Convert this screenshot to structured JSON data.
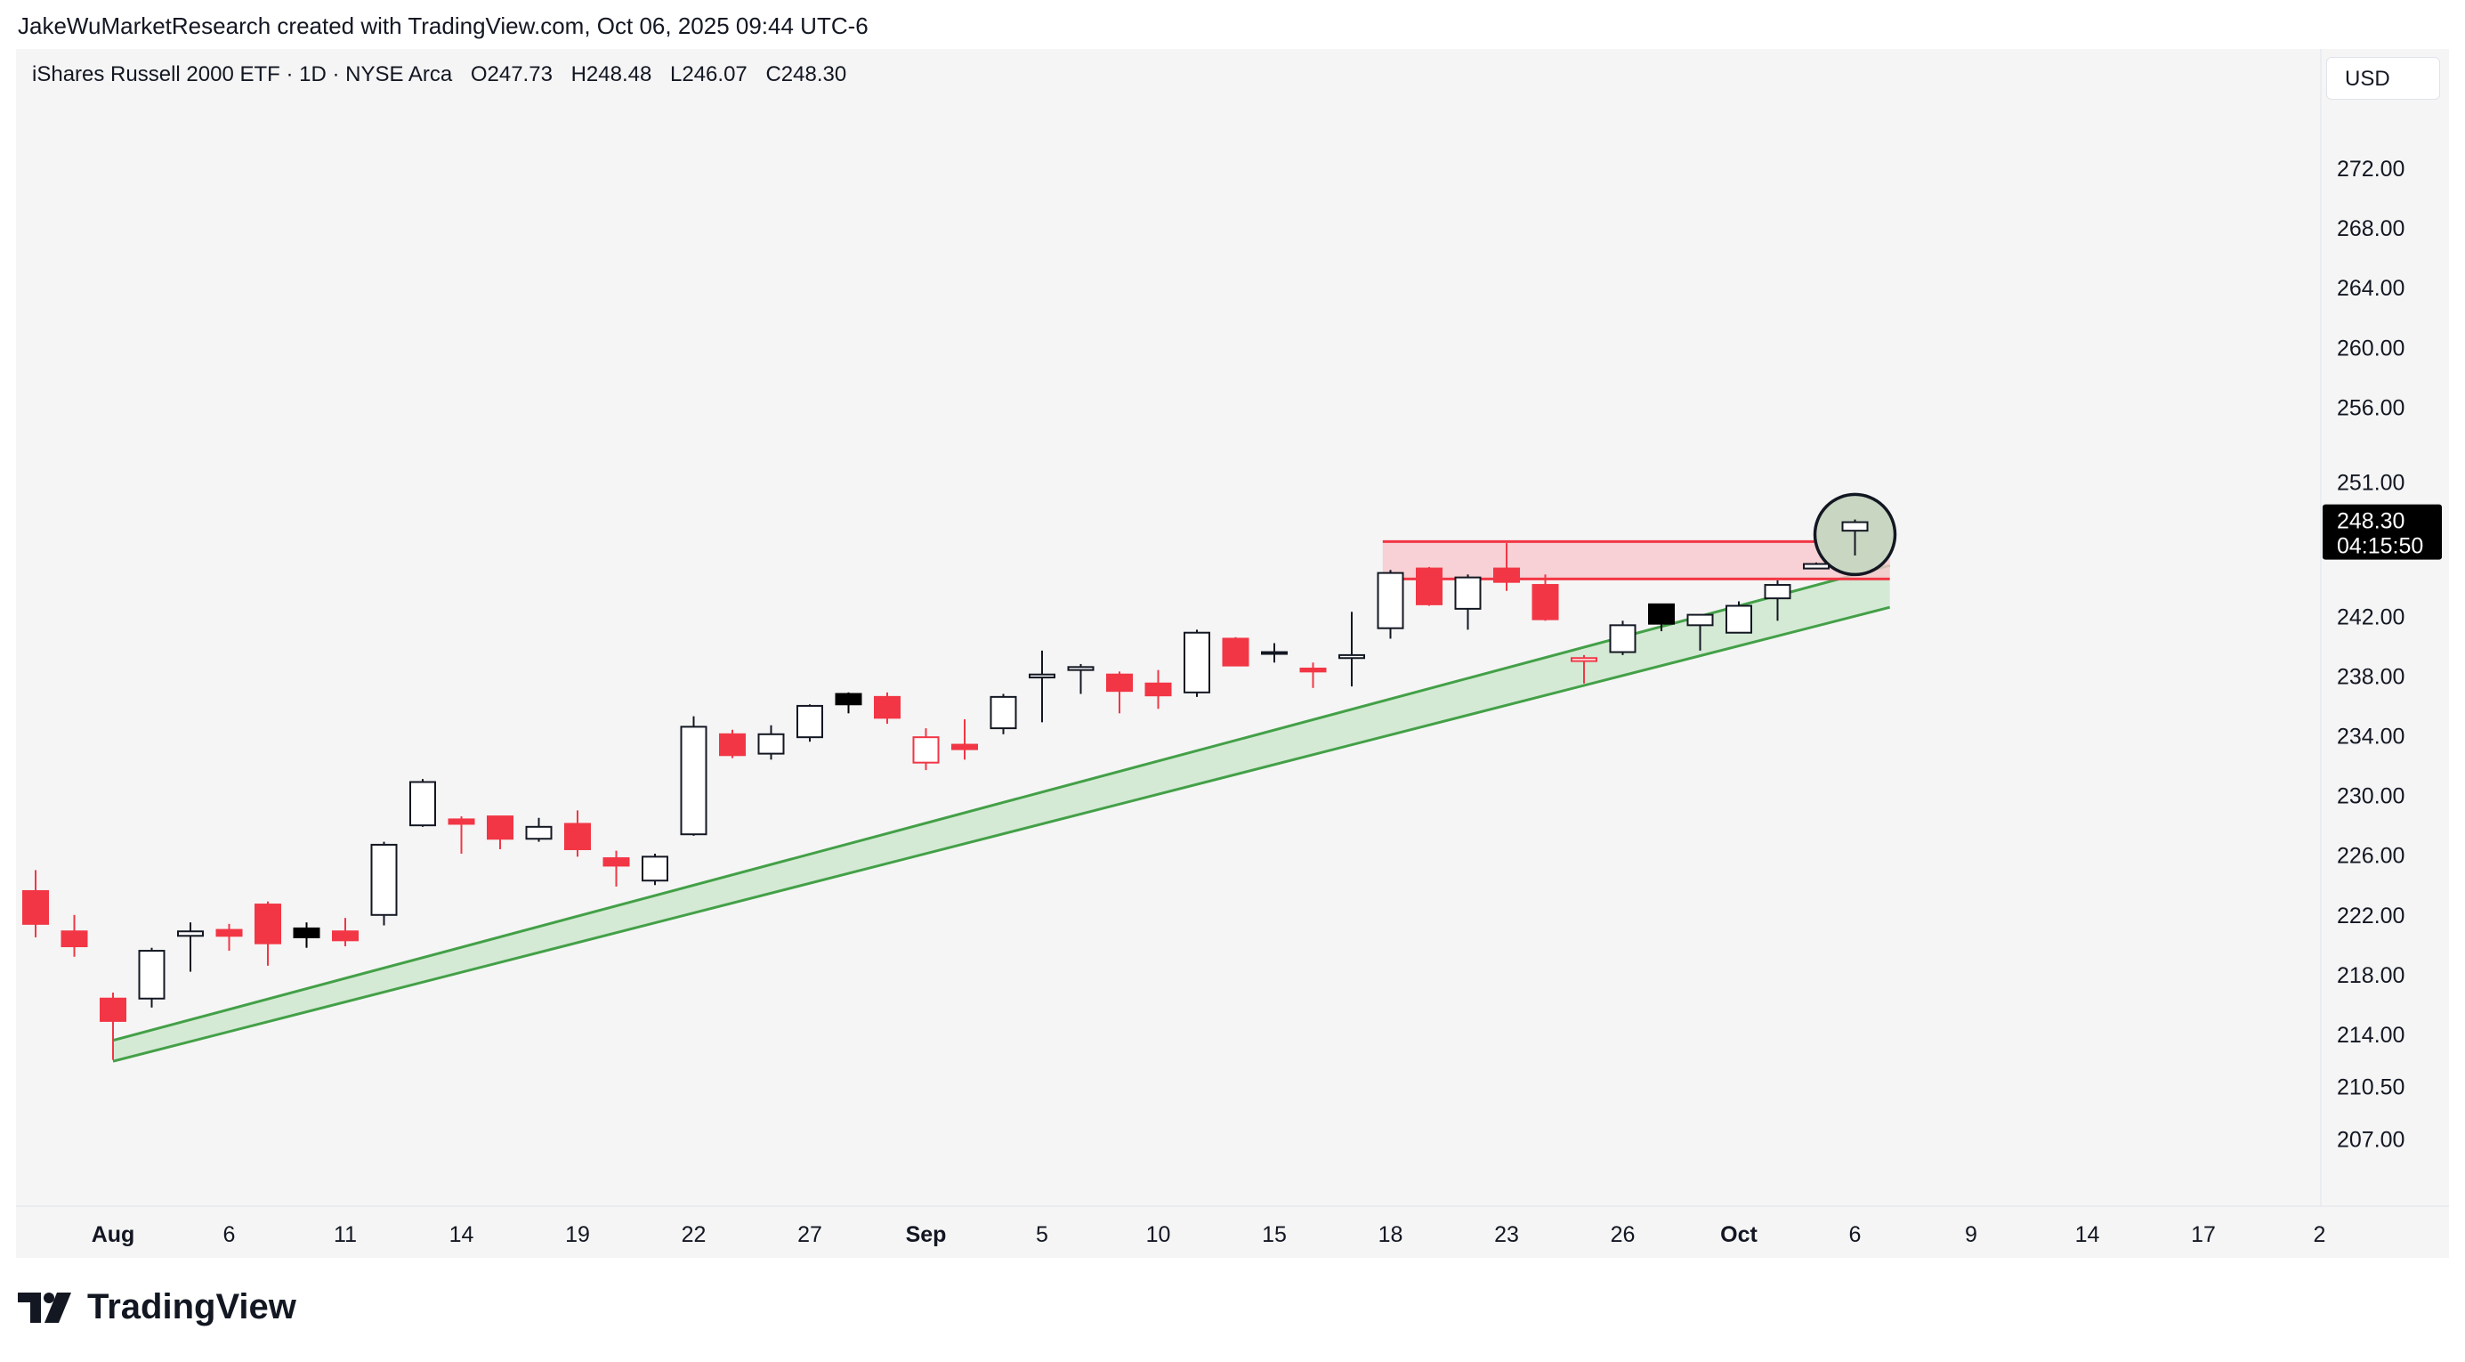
{
  "header": {
    "attribution": "JakeWuMarketResearch created with TradingView.com, Oct 06, 2025 09:44 UTC-6"
  },
  "symbol": {
    "name": "iShares Russell 2000 ETF · 1D · NYSE Arca",
    "open": "O247.73",
    "high": "H248.48",
    "low": "L246.07",
    "close": "C248.30"
  },
  "currency_button": "USD",
  "price_label": {
    "price": "248.30",
    "countdown": "04:15:50"
  },
  "brand": "TradingView",
  "colors": {
    "up_body": "#ffffff",
    "up_border": "#131722",
    "down": "#f23645",
    "doji_dark": "#000000",
    "channel": "#43a047",
    "channel_fill": "#c8e6c9",
    "resistance": "#f23645",
    "resistance_fill": "#f8c8cd",
    "circle_fill": "#c9d6c2",
    "background": "#f5f5f5"
  },
  "chart_data": {
    "type": "candlestick",
    "title": "iShares Russell 2000 ETF · 1D · NYSE Arca",
    "interval": "1D",
    "y_axis": {
      "ticks": [
        "272.00",
        "268.00",
        "264.00",
        "260.00",
        "256.00",
        "251.00",
        "242.00",
        "238.00",
        "234.00",
        "230.00",
        "226.00",
        "222.00",
        "218.00",
        "214.00",
        "210.50",
        "207.00"
      ]
    },
    "x_axis": {
      "ticks": [
        {
          "label": "Aug",
          "bold": true,
          "i": 2
        },
        {
          "label": "6",
          "bold": false,
          "i": 5
        },
        {
          "label": "11",
          "bold": false,
          "i": 8
        },
        {
          "label": "14",
          "bold": false,
          "i": 11
        },
        {
          "label": "19",
          "bold": false,
          "i": 14
        },
        {
          "label": "22",
          "bold": false,
          "i": 17
        },
        {
          "label": "27",
          "bold": false,
          "i": 20
        },
        {
          "label": "Sep",
          "bold": true,
          "i": 23
        },
        {
          "label": "5",
          "bold": false,
          "i": 26
        },
        {
          "label": "10",
          "bold": false,
          "i": 29
        },
        {
          "label": "15",
          "bold": false,
          "i": 32
        },
        {
          "label": "18",
          "bold": false,
          "i": 35
        },
        {
          "label": "23",
          "bold": false,
          "i": 38
        },
        {
          "label": "26",
          "bold": false,
          "i": 41
        },
        {
          "label": "Oct",
          "bold": true,
          "i": 44
        },
        {
          "label": "6",
          "bold": false,
          "i": 47
        },
        {
          "label": "9",
          "bold": false,
          "i": 50
        },
        {
          "label": "14",
          "bold": false,
          "i": 53
        },
        {
          "label": "17",
          "bold": false,
          "i": 56
        },
        {
          "label": "2",
          "bold": false,
          "i": 59
        }
      ]
    },
    "candles": [
      {
        "o": 223.6,
        "h": 225.0,
        "l": 220.5,
        "c": 221.4,
        "dir": "down"
      },
      {
        "o": 220.9,
        "h": 222.0,
        "l": 219.2,
        "c": 219.9,
        "dir": "down"
      },
      {
        "o": 216.4,
        "h": 216.8,
        "l": 212.3,
        "c": 214.9,
        "dir": "down"
      },
      {
        "o": 216.4,
        "h": 219.8,
        "l": 215.8,
        "c": 219.6,
        "dir": "up"
      },
      {
        "o": 220.6,
        "h": 221.5,
        "l": 218.2,
        "c": 220.9,
        "dir": "up"
      },
      {
        "o": 221.0,
        "h": 221.4,
        "l": 219.6,
        "c": 220.6,
        "dir": "down"
      },
      {
        "o": 222.7,
        "h": 222.9,
        "l": 218.6,
        "c": 220.1,
        "dir": "down"
      },
      {
        "o": 221.1,
        "h": 221.5,
        "l": 219.8,
        "c": 220.5,
        "dir": "dark"
      },
      {
        "o": 220.9,
        "h": 221.8,
        "l": 219.9,
        "c": 220.3,
        "dir": "down"
      },
      {
        "o": 222.0,
        "h": 226.9,
        "l": 221.3,
        "c": 226.7,
        "dir": "up"
      },
      {
        "o": 228.0,
        "h": 231.1,
        "l": 227.9,
        "c": 230.9,
        "dir": "up"
      },
      {
        "o": 228.4,
        "h": 228.6,
        "l": 226.1,
        "c": 228.1,
        "dir": "down"
      },
      {
        "o": 228.6,
        "h": 228.6,
        "l": 226.4,
        "c": 227.1,
        "dir": "down"
      },
      {
        "o": 227.1,
        "h": 228.5,
        "l": 226.9,
        "c": 227.9,
        "dir": "up"
      },
      {
        "o": 228.1,
        "h": 229.0,
        "l": 225.9,
        "c": 226.4,
        "dir": "down"
      },
      {
        "o": 225.8,
        "h": 226.3,
        "l": 223.9,
        "c": 225.3,
        "dir": "down"
      },
      {
        "o": 224.3,
        "h": 226.1,
        "l": 224.0,
        "c": 225.9,
        "dir": "up"
      },
      {
        "o": 227.4,
        "h": 235.3,
        "l": 227.3,
        "c": 234.6,
        "dir": "up"
      },
      {
        "o": 234.1,
        "h": 234.4,
        "l": 232.5,
        "c": 232.7,
        "dir": "down"
      },
      {
        "o": 232.8,
        "h": 234.7,
        "l": 232.4,
        "c": 234.1,
        "dir": "up"
      },
      {
        "o": 233.9,
        "h": 236.1,
        "l": 233.6,
        "c": 236.0,
        "dir": "up"
      },
      {
        "o": 236.8,
        "h": 236.9,
        "l": 235.5,
        "c": 236.1,
        "dir": "dark"
      },
      {
        "o": 236.6,
        "h": 236.9,
        "l": 234.8,
        "c": 235.2,
        "dir": "down"
      },
      {
        "o": 232.2,
        "h": 234.5,
        "l": 231.7,
        "c": 233.9,
        "dir": "down-hollow"
      },
      {
        "o": 233.4,
        "h": 235.1,
        "l": 232.4,
        "c": 233.1,
        "dir": "down"
      },
      {
        "o": 234.5,
        "h": 236.8,
        "l": 234.1,
        "c": 236.6,
        "dir": "up"
      },
      {
        "o": 237.9,
        "h": 239.7,
        "l": 234.9,
        "c": 238.1,
        "dir": "up"
      },
      {
        "o": 238.4,
        "h": 238.8,
        "l": 236.8,
        "c": 238.6,
        "dir": "up"
      },
      {
        "o": 238.1,
        "h": 238.3,
        "l": 235.5,
        "c": 237.0,
        "dir": "down"
      },
      {
        "o": 237.5,
        "h": 238.4,
        "l": 235.8,
        "c": 236.7,
        "dir": "down"
      },
      {
        "o": 236.9,
        "h": 241.1,
        "l": 236.6,
        "c": 240.9,
        "dir": "up"
      },
      {
        "o": 240.5,
        "h": 240.6,
        "l": 238.7,
        "c": 238.7,
        "dir": "down"
      },
      {
        "o": 239.5,
        "h": 240.2,
        "l": 238.9,
        "c": 239.6,
        "dir": "up"
      },
      {
        "o": 238.5,
        "h": 238.9,
        "l": 237.2,
        "c": 238.3,
        "dir": "down"
      },
      {
        "o": 239.2,
        "h": 242.3,
        "l": 237.3,
        "c": 239.4,
        "dir": "up"
      },
      {
        "o": 241.2,
        "h": 245.1,
        "l": 240.5,
        "c": 244.9,
        "dir": "up"
      },
      {
        "o": 245.2,
        "h": 245.3,
        "l": 242.7,
        "c": 242.8,
        "dir": "down"
      },
      {
        "o": 242.5,
        "h": 244.8,
        "l": 241.1,
        "c": 244.6,
        "dir": "up"
      },
      {
        "o": 245.2,
        "h": 246.9,
        "l": 243.7,
        "c": 244.3,
        "dir": "down"
      },
      {
        "o": 244.1,
        "h": 244.8,
        "l": 241.7,
        "c": 241.8,
        "dir": "down"
      },
      {
        "o": 239.0,
        "h": 239.4,
        "l": 237.5,
        "c": 239.2,
        "dir": "down-hollow"
      },
      {
        "o": 239.6,
        "h": 241.7,
        "l": 239.4,
        "c": 241.4,
        "dir": "up"
      },
      {
        "o": 242.8,
        "h": 242.8,
        "l": 241.0,
        "c": 241.5,
        "dir": "dark"
      },
      {
        "o": 241.4,
        "h": 242.1,
        "l": 239.7,
        "c": 242.1,
        "dir": "up"
      },
      {
        "o": 240.9,
        "h": 243.0,
        "l": 240.9,
        "c": 242.7,
        "dir": "up"
      },
      {
        "o": 243.2,
        "h": 244.4,
        "l": 241.7,
        "c": 244.1,
        "dir": "up"
      },
      {
        "o": 245.2,
        "h": 245.6,
        "l": 245.2,
        "c": 245.5,
        "dir": "up"
      },
      {
        "o": 247.73,
        "h": 248.48,
        "l": 246.07,
        "c": 248.3,
        "dir": "up"
      }
    ],
    "channel": {
      "start_index": 2,
      "end_index": 47.9,
      "upper": [
        213.6,
        245.4
      ],
      "lower": [
        212.2,
        242.6
      ]
    },
    "resistance_zone": {
      "start_index": 34.8,
      "end_index": 47.9,
      "top": 247.0,
      "bottom": 244.5
    },
    "highlight_index": 47,
    "current_price": 248.3
  }
}
